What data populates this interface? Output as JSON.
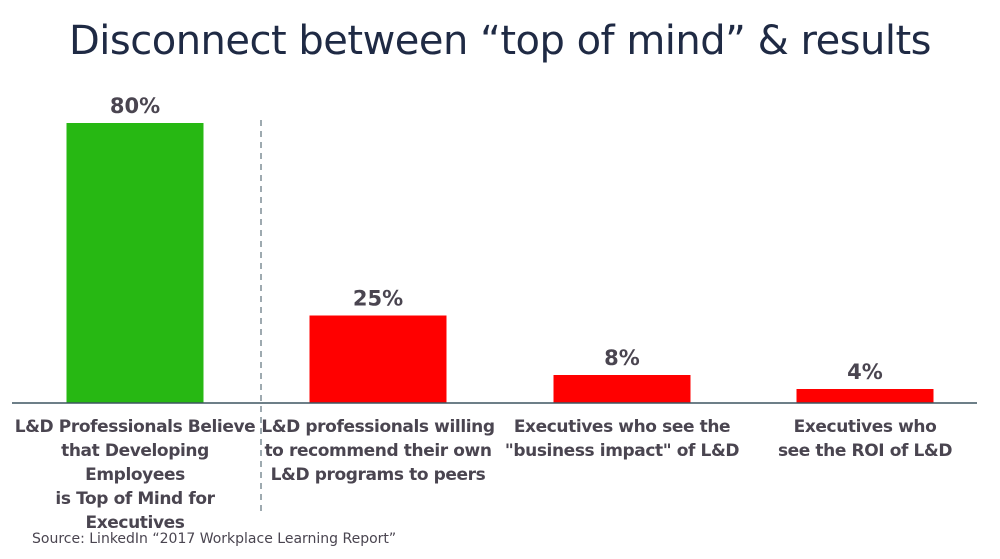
{
  "chart_data": {
    "type": "bar",
    "title": "Disconnect between “top of mind” & results",
    "categories": [
      "L&D Professionals Believe\nthat Developing Employees\nis Top of Mind for Executives",
      "L&D professionals willing\nto recommend their own\nL&D programs to peers",
      "Executives who see the\n\"business impact\" of L&D",
      "Executives who\nsee the ROI of L&D"
    ],
    "values": [
      80,
      25,
      8,
      4
    ],
    "data_labels": [
      "80%",
      "25%",
      "8%",
      "4%"
    ],
    "colors": [
      "#27b813",
      "#ff0000",
      "#ff0000",
      "#ff0000"
    ],
    "ylim": [
      0,
      80
    ],
    "grid": false,
    "legend": "none",
    "annotation": "dashed divider between first bar and the rest",
    "source": "Source: LinkedIn “2017 Workplace Learning Report”"
  }
}
